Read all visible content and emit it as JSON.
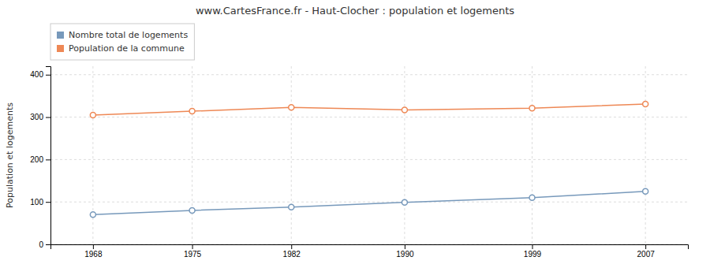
{
  "chart_data": {
    "type": "line",
    "title": "www.CartesFrance.fr - Haut-Clocher : population et logements",
    "y_label": "Population et logements",
    "x": [
      1968,
      1975,
      1982,
      1990,
      1999,
      2007
    ],
    "series": [
      {
        "name": "Nombre total de logements",
        "color": "#7799bb",
        "marker": "circle",
        "line_style": "solid",
        "values": [
          70,
          80,
          88,
          99,
          110,
          125
        ]
      },
      {
        "name": "Population de la commune",
        "color": "#ee8855",
        "marker": "circle",
        "line_style": "solid",
        "values": [
          305,
          314,
          323,
          317,
          321,
          331
        ]
      }
    ],
    "xlim": [
      1965,
      2010
    ],
    "xticks": [
      1968,
      1975,
      1982,
      1990,
      1999,
      2007
    ],
    "ylim": [
      0,
      420
    ],
    "yticks": [
      0,
      100,
      200,
      300,
      400
    ],
    "grid": true,
    "legend": "upper left"
  }
}
